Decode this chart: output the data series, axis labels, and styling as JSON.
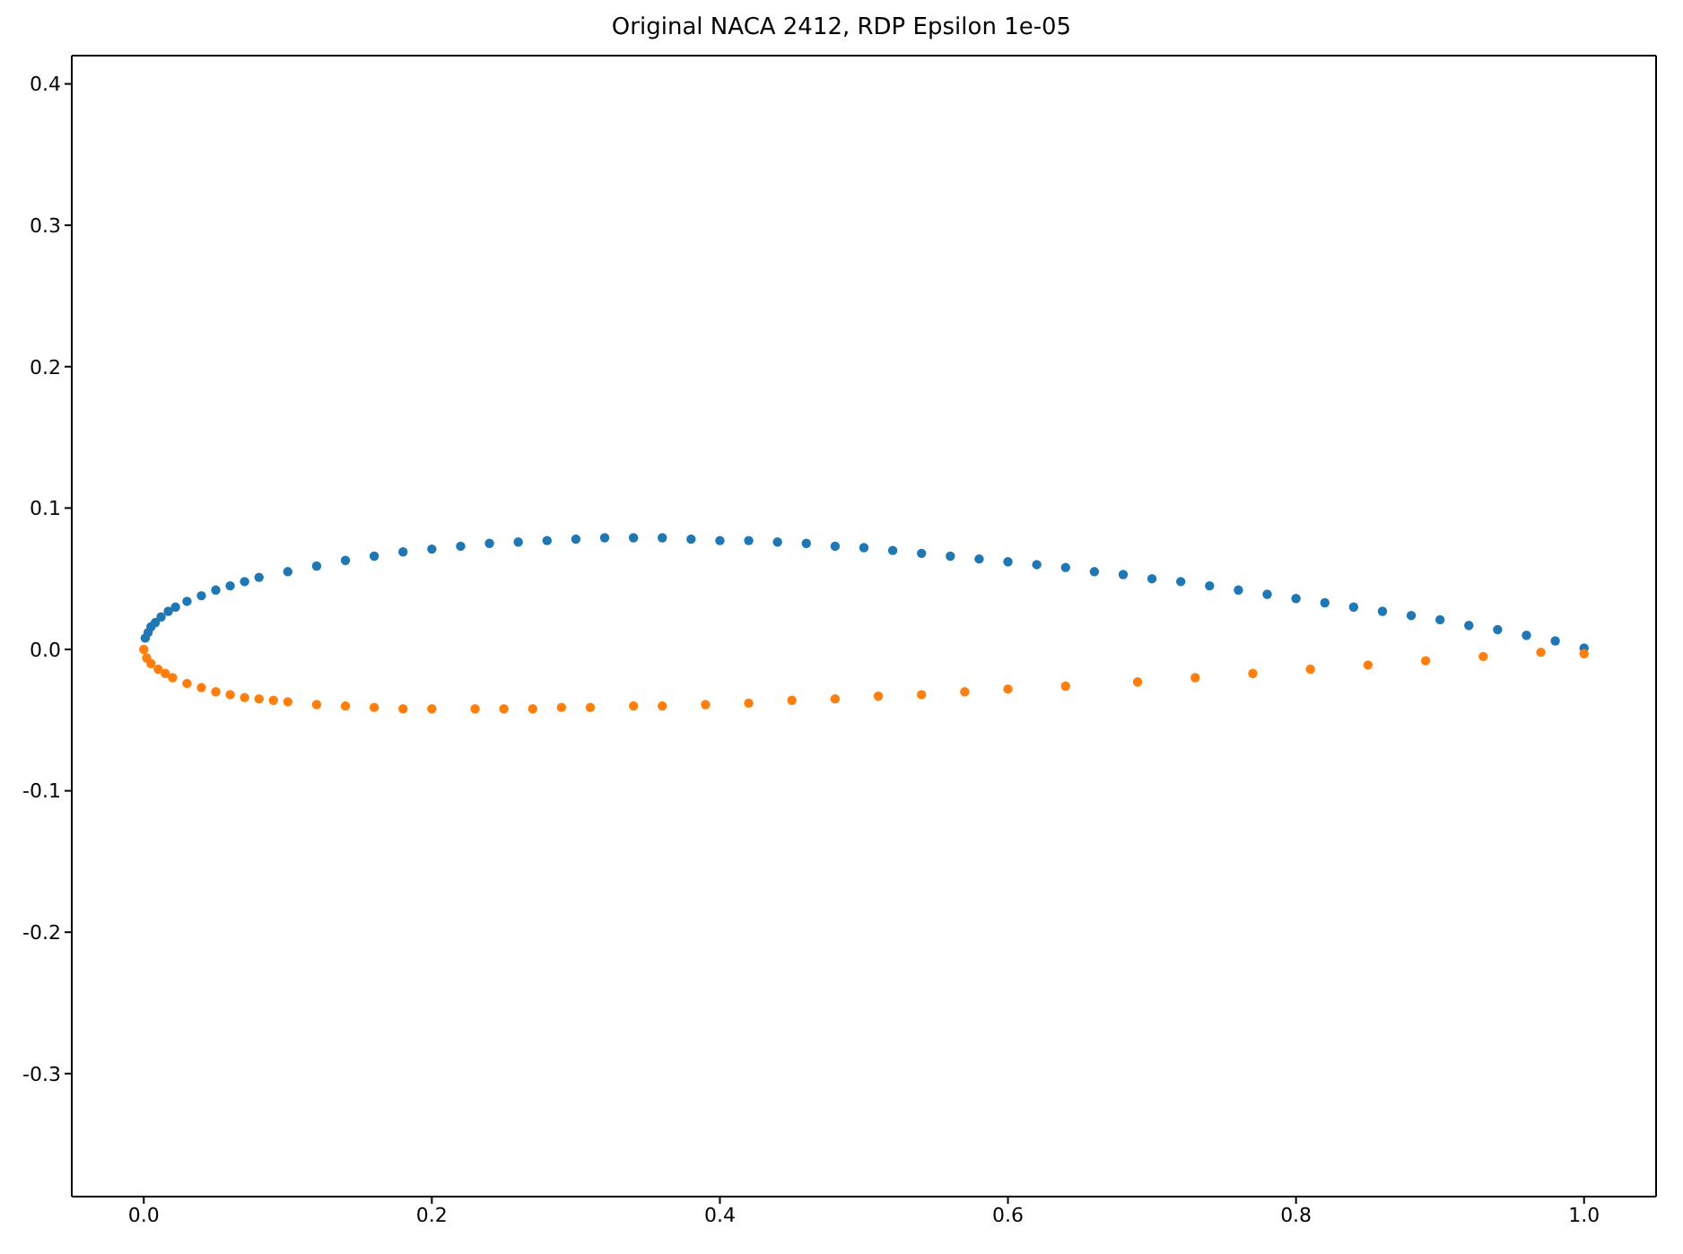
{
  "chart_data": {
    "type": "scatter",
    "title": "Original NACA 2412, RDP Epsilon 1e-05",
    "marker": "circle",
    "grid": false,
    "legend": false,
    "xlim": [
      -0.05,
      1.05
    ],
    "xticks": [
      {
        "value": 0,
        "label": "0.0"
      },
      0.2,
      0.4,
      0.6,
      0.8,
      {
        "value": 1,
        "label": "1.0"
      }
    ],
    "ylim": [
      -0.387,
      0.42
    ],
    "yticks": [
      -0.3,
      -0.2,
      -0.1,
      {
        "value": 0,
        "label": "0.0"
      },
      0.1,
      0.2,
      0.3,
      0.4
    ],
    "series": [
      {
        "color": "#1f77b4",
        "x": [
          0.001,
          0.003,
          0.005,
          0.008,
          0.012,
          0.017,
          0.022,
          0.03,
          0.04,
          0.05,
          0.06,
          0.07,
          0.08,
          0.1,
          0.12,
          0.14,
          0.16,
          0.18,
          0.2,
          0.22,
          0.24,
          0.26,
          0.28,
          0.3,
          0.32,
          0.34,
          0.36,
          0.38,
          0.4,
          0.42,
          0.44,
          0.46,
          0.48,
          0.5,
          0.52,
          0.54,
          0.56,
          0.58,
          0.6,
          0.62,
          0.64,
          0.66,
          0.68,
          0.7,
          0.72,
          0.74,
          0.76,
          0.78,
          0.8,
          0.82,
          0.84,
          0.86,
          0.88,
          0.9,
          0.92,
          0.94,
          0.96,
          0.98,
          1.0
        ],
        "values": [
          0.008,
          0.012,
          0.016,
          0.019,
          0.023,
          0.027,
          0.03,
          0.034,
          0.038,
          0.042,
          0.045,
          0.048,
          0.051,
          0.055,
          0.059,
          0.063,
          0.066,
          0.069,
          0.071,
          0.073,
          0.075,
          0.076,
          0.077,
          0.078,
          0.079,
          0.079,
          0.079,
          0.078,
          0.077,
          0.077,
          0.076,
          0.075,
          0.073,
          0.072,
          0.07,
          0.068,
          0.066,
          0.064,
          0.062,
          0.06,
          0.058,
          0.055,
          0.053,
          0.05,
          0.048,
          0.045,
          0.042,
          0.039,
          0.036,
          0.033,
          0.03,
          0.027,
          0.024,
          0.021,
          0.017,
          0.014,
          0.01,
          0.006,
          0.001
        ]
      },
      {
        "color": "#ff7f0e",
        "x": [
          0,
          0.002,
          0.005,
          0.01,
          0.015,
          0.02,
          0.03,
          0.04,
          0.05,
          0.06,
          0.07,
          0.08,
          0.09,
          0.1,
          0.12,
          0.14,
          0.16,
          0.18,
          0.2,
          0.23,
          0.25,
          0.27,
          0.29,
          0.31,
          0.34,
          0.36,
          0.39,
          0.42,
          0.45,
          0.48,
          0.51,
          0.54,
          0.57,
          0.6,
          0.64,
          0.69,
          0.73,
          0.77,
          0.81,
          0.85,
          0.89,
          0.93,
          0.97,
          1.0
        ],
        "values": [
          0,
          -0.006,
          -0.01,
          -0.014,
          -0.017,
          -0.02,
          -0.024,
          -0.027,
          -0.03,
          -0.032,
          -0.034,
          -0.035,
          -0.036,
          -0.037,
          -0.039,
          -0.04,
          -0.041,
          -0.042,
          -0.042,
          -0.042,
          -0.042,
          -0.042,
          -0.041,
          -0.041,
          -0.04,
          -0.04,
          -0.039,
          -0.038,
          -0.036,
          -0.035,
          -0.033,
          -0.032,
          -0.03,
          -0.028,
          -0.026,
          -0.023,
          -0.02,
          -0.017,
          -0.014,
          -0.011,
          -0.008,
          -0.005,
          -0.002,
          -0.003
        ]
      }
    ]
  }
}
